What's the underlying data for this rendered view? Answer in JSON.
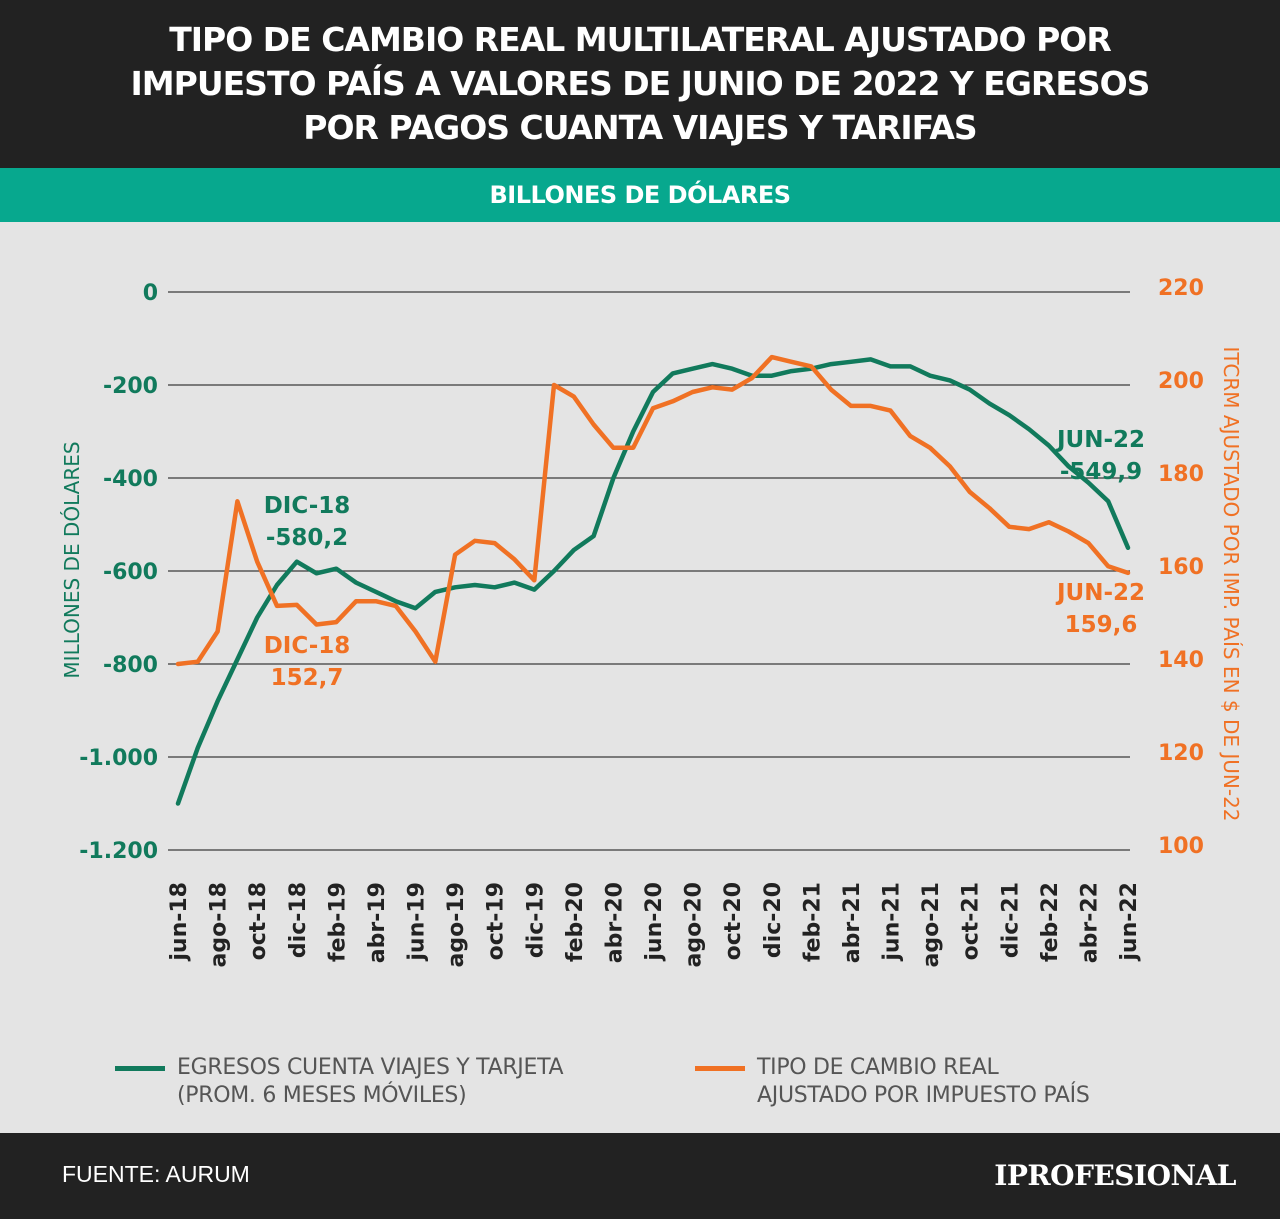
{
  "header": {
    "title_lines": [
      "TIPO DE CAMBIO REAL MULTILATERAL AJUSTADO POR",
      "IMPUESTO PAÍS A VALORES DE JUNIO DE 2022 Y EGRESOS",
      "POR PAGOS CUANTA VIAJES Y TARIFAS"
    ],
    "subtitle": "BILLONES DE DÓLARES"
  },
  "footer": {
    "source": "FUENTE: AURUM",
    "brand": "IPROFESIONAL"
  },
  "colors": {
    "green": "#117a5c",
    "orange": "#f07124",
    "header_bg": "#222222",
    "teal": "#07a88e"
  },
  "chart_data": {
    "type": "line",
    "categories": [
      "jun-18",
      "jul-18",
      "ago-18",
      "sep-18",
      "oct-18",
      "nov-18",
      "dic-18",
      "ene-19",
      "feb-19",
      "mar-19",
      "abr-19",
      "may-19",
      "jun-19",
      "jul-19",
      "ago-19",
      "sep-19",
      "oct-19",
      "nov-19",
      "dic-19",
      "ene-20",
      "feb-20",
      "mar-20",
      "abr-20",
      "may-20",
      "jun-20",
      "jul-20",
      "ago-20",
      "sep-20",
      "oct-20",
      "nov-20",
      "dic-20",
      "ene-21",
      "feb-21",
      "mar-21",
      "abr-21",
      "may-21",
      "jun-21",
      "jul-21",
      "ago-21",
      "sep-21",
      "oct-21",
      "nov-21",
      "dic-21",
      "ene-22",
      "feb-22",
      "mar-22",
      "abr-22",
      "may-22",
      "jun-22"
    ],
    "x_tick_labels": [
      "jun-18",
      "ago-18",
      "oct-18",
      "dic-18",
      "feb-19",
      "abr-19",
      "jun-19",
      "ago-19",
      "oct-19",
      "dic-19",
      "feb-20",
      "abr-20",
      "jun-20",
      "ago-20",
      "oct-20",
      "dic-20",
      "feb-21",
      "abr-21",
      "jun-21",
      "ago-21",
      "oct-21",
      "dic-21",
      "feb-22",
      "abr-22",
      "jun-22"
    ],
    "y_left": {
      "label": "MILLONES DE DÓLARES",
      "range": [
        -1200,
        0
      ],
      "ticks": [
        0,
        -200,
        -400,
        -600,
        -800,
        -1000,
        -1200
      ],
      "tick_labels": [
        "0",
        "-200",
        "-400",
        "-600",
        "-800",
        "-1.000",
        "-1.200"
      ]
    },
    "y_right": {
      "label": "ITCRM AJUSTADO POR IMP. PAÍS EN $ DE JUN-22",
      "range": [
        100,
        220
      ],
      "ticks": [
        220,
        200,
        180,
        160,
        140,
        120,
        100
      ],
      "tick_labels": [
        "220",
        "200",
        "180",
        "160",
        "140",
        "120",
        "100"
      ]
    },
    "grid": true,
    "legend_placement": "bottom",
    "series": [
      {
        "name": "EGRESOS CUENTA VIAJES Y TARJETA (PROM. 6 MESES MÓVILES)",
        "name_lines": [
          "EGRESOS CUENTA VIAJES Y TARJETA",
          "(PROM. 6 MESES MÓVILES)"
        ],
        "axis": "left",
        "values": [
          -1100,
          -980,
          -880,
          -790,
          -700,
          -630,
          -580,
          -605,
          -595,
          -625,
          -645,
          -665,
          -680,
          -645,
          -635,
          -630,
          -635,
          -625,
          -640,
          -600,
          -555,
          -525,
          -400,
          -300,
          -215,
          -175,
          -165,
          -155,
          -165,
          -180,
          -180,
          -170,
          -165,
          -155,
          -150,
          -145,
          -160,
          -160,
          -180,
          -190,
          -210,
          -240,
          -265,
          -295,
          -330,
          -375,
          -410,
          -450,
          -550
        ]
      },
      {
        "name": "TIPO DE CAMBIO REAL AJUSTADO POR IMPUESTO PAÍS",
        "name_lines": [
          "TIPO DE CAMBIO REAL",
          "AJUSTADO POR IMPUESTO PAÍS"
        ],
        "axis": "right",
        "values": [
          140,
          140.5,
          147,
          175,
          162,
          152.5,
          152.7,
          148.5,
          149,
          153.5,
          153.5,
          152.5,
          147,
          140.5,
          163.5,
          166.5,
          166,
          162.5,
          158,
          200,
          197.5,
          191.5,
          186.5,
          186.5,
          195,
          196.5,
          198.5,
          199.5,
          199,
          201.5,
          206,
          205,
          204,
          199,
          195.5,
          195.5,
          194.5,
          189,
          186.5,
          182.5,
          177,
          173.5,
          169.5,
          169,
          170.5,
          168.5,
          166,
          161,
          159.6
        ]
      }
    ],
    "annotations": [
      {
        "series": 0,
        "category": "dic-18",
        "lines": [
          "DIC-18",
          "-580,2"
        ]
      },
      {
        "series": 1,
        "category": "dic-18",
        "lines": [
          "DIC-18",
          "152,7"
        ]
      },
      {
        "series": 0,
        "category": "jun-22",
        "lines": [
          "JUN-22",
          "-549,9"
        ]
      },
      {
        "series": 1,
        "category": "jun-22",
        "lines": [
          "JUN-22",
          "159,6"
        ]
      }
    ]
  }
}
